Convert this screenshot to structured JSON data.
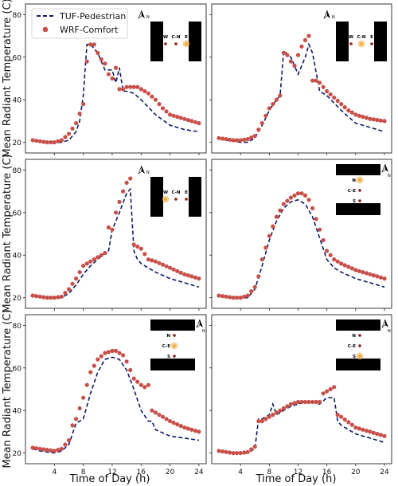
{
  "figure": {
    "ylabel": "Mean Radiant Temperature (C)",
    "xlabel": "Time of Day (h)"
  },
  "legend": {
    "items": [
      {
        "label": "TUF-Pedestrian",
        "style": "dashed-line",
        "color": "#0d1a66"
      },
      {
        "label": "WRF-Comfort",
        "style": "dot",
        "color": "#c8504a"
      }
    ]
  },
  "colors": {
    "tuf": "#0d1a66",
    "wrf": "#c8504a",
    "building": "#000000",
    "receptor_dark": "#8b1a1a",
    "receptor_highlight": "#f0a838"
  },
  "north_label": "N",
  "chart_data": [
    {
      "type": "line",
      "xlim": [
        0,
        25
      ],
      "ylim": [
        15,
        85
      ],
      "xticks": [
        4,
        8,
        12,
        16,
        20,
        24
      ],
      "yticks": [
        20,
        40,
        60,
        80
      ],
      "orientation": "E-W canyon",
      "points": [
        "W",
        "C-N",
        "E"
      ],
      "highlight": "E",
      "series": [
        {
          "name": "TUF-Pedestrian",
          "x": [
            1,
            2,
            3,
            4,
            5,
            6,
            7,
            7.5,
            8,
            8.5,
            9,
            10,
            11,
            12,
            12.5,
            13,
            13.5,
            14,
            15,
            16,
            18,
            20,
            22,
            24
          ],
          "y": [
            21,
            20.5,
            20,
            19.8,
            20,
            21,
            25,
            30,
            42,
            66,
            66,
            62,
            54,
            54,
            48,
            55,
            44,
            44,
            43,
            40,
            33,
            28,
            26,
            25
          ]
        },
        {
          "name": "WRF-Comfort",
          "x": [
            1,
            2,
            3,
            4,
            5,
            6,
            7,
            8,
            8.5,
            9,
            9.5,
            10,
            10.5,
            11,
            11.5,
            12,
            12.5,
            13,
            13.5,
            14,
            14.5,
            15,
            15.5,
            16,
            17,
            18,
            19,
            20,
            22,
            24
          ],
          "y": [
            21,
            20.5,
            20,
            20,
            21,
            24,
            29,
            38,
            58,
            66,
            66,
            62,
            59,
            57,
            52,
            50,
            55,
            45,
            45,
            46,
            46,
            46,
            46,
            45,
            43,
            40,
            36,
            33,
            31,
            29
          ]
        }
      ]
    },
    {
      "type": "line",
      "xlim": [
        0,
        25
      ],
      "ylim": [
        15,
        85
      ],
      "xticks": [
        4,
        8,
        12,
        16,
        20,
        24
      ],
      "yticks": [
        20,
        40,
        60,
        80
      ],
      "orientation": "E-W canyon",
      "points": [
        "W",
        "C-N",
        "E"
      ],
      "highlight": "C-N",
      "series": [
        {
          "name": "TUF-Pedestrian",
          "x": [
            1,
            2,
            3,
            4,
            5,
            6,
            7,
            8,
            9,
            9.5,
            10,
            11,
            12,
            12.5,
            13,
            13.5,
            14,
            15,
            16,
            18,
            20,
            22,
            24
          ],
          "y": [
            22,
            21,
            20.5,
            20,
            20,
            22,
            28,
            35,
            40,
            42,
            63,
            60,
            52,
            56,
            60,
            66,
            62,
            44,
            42,
            35,
            29,
            27,
            25
          ]
        },
        {
          "name": "WRF-Comfort",
          "x": [
            1,
            2,
            3,
            4,
            5,
            6,
            7,
            8,
            9,
            9.5,
            10,
            10.5,
            11,
            11.5,
            12,
            12.5,
            13,
            13.5,
            14,
            14.5,
            15,
            16,
            17,
            18,
            19,
            20,
            22,
            24
          ],
          "y": [
            22,
            21.5,
            21,
            21,
            21.5,
            23,
            29,
            36,
            40,
            42,
            62,
            61,
            58,
            56,
            61,
            65,
            68,
            70,
            49,
            49,
            48,
            44,
            41,
            38,
            35,
            33,
            31,
            30
          ]
        }
      ]
    },
    {
      "type": "line",
      "xlim": [
        0,
        25
      ],
      "ylim": [
        15,
        85
      ],
      "xticks": [
        4,
        8,
        12,
        16,
        20,
        24
      ],
      "yticks": [
        20,
        40,
        60,
        80
      ],
      "orientation": "E-W canyon",
      "points": [
        "W",
        "C-N",
        "E"
      ],
      "highlight": "W",
      "series": [
        {
          "name": "TUF-Pedestrian",
          "x": [
            1,
            2,
            3,
            4,
            5,
            6,
            7,
            8,
            9,
            10,
            11,
            11.5,
            12,
            13,
            14,
            14.5,
            15,
            15.5,
            16,
            18,
            20,
            22,
            24
          ],
          "y": [
            21,
            20.5,
            20,
            19.8,
            20,
            22,
            26,
            31,
            35,
            38,
            41,
            42,
            52,
            60,
            69,
            71,
            42,
            38,
            36,
            32,
            29,
            27,
            25
          ]
        },
        {
          "name": "WRF-Comfort",
          "x": [
            1,
            2,
            3,
            4,
            5,
            6,
            7,
            8,
            9,
            10,
            11,
            11.5,
            12,
            12.5,
            13,
            13.5,
            14,
            14.5,
            15,
            16,
            17,
            18,
            20,
            22,
            24
          ],
          "y": [
            21,
            20.5,
            20,
            20,
            20.5,
            24,
            29,
            35,
            37,
            39,
            41,
            53,
            52,
            60,
            65,
            70,
            74,
            76,
            45,
            43,
            38,
            37,
            34,
            31,
            29
          ]
        }
      ]
    },
    {
      "type": "line",
      "xlim": [
        0,
        25
      ],
      "ylim": [
        15,
        85
      ],
      "xticks": [
        4,
        8,
        12,
        16,
        20,
        24
      ],
      "yticks": [
        20,
        40,
        60,
        80
      ],
      "orientation": "N-S canyon",
      "points": [
        "N",
        "C-E",
        "S"
      ],
      "highlight": "N",
      "series": [
        {
          "name": "TUF-Pedestrian",
          "x": [
            1,
            2,
            3,
            4,
            5,
            6,
            7,
            8,
            9,
            10,
            11,
            12,
            13,
            14,
            15,
            16,
            17,
            18,
            20,
            22,
            24
          ],
          "y": [
            21,
            20.5,
            20,
            19.8,
            20,
            24,
            35,
            47,
            56,
            62,
            65,
            66,
            64,
            58,
            48,
            38,
            34,
            32,
            29,
            27,
            25
          ]
        },
        {
          "name": "WRF-Comfort",
          "x": [
            1,
            2,
            3,
            4,
            5,
            6,
            6.5,
            7,
            8,
            9,
            10,
            11,
            12,
            12.5,
            13,
            13.5,
            14,
            15,
            16,
            17,
            18,
            20,
            22,
            24
          ],
          "y": [
            21,
            20.5,
            20,
            20,
            21,
            25,
            30,
            38,
            49,
            58,
            64,
            67,
            69,
            69,
            68,
            66,
            62,
            52,
            42,
            38,
            36,
            33,
            31,
            29
          ]
        }
      ]
    },
    {
      "type": "line",
      "xlim": [
        0,
        25
      ],
      "ylim": [
        15,
        85
      ],
      "xticks": [
        4,
        8,
        12,
        16,
        20,
        24
      ],
      "yticks": [
        20,
        40,
        60,
        80
      ],
      "orientation": "N-S canyon",
      "points": [
        "N",
        "C-E",
        "S"
      ],
      "highlight": "C-E",
      "series": [
        {
          "name": "TUF-Pedestrian",
          "x": [
            1,
            2,
            3,
            4,
            5,
            6,
            7,
            7.5,
            8,
            9,
            10,
            11,
            12,
            13,
            14,
            15,
            16,
            17,
            17.5,
            18,
            20,
            22,
            24
          ],
          "y": [
            22,
            21,
            20.5,
            20,
            21,
            24,
            34,
            35,
            36,
            48,
            58,
            64,
            65,
            64,
            59,
            50,
            40,
            35,
            35,
            31,
            28,
            27,
            26
          ]
        },
        {
          "name": "WRF-Comfort",
          "x": [
            1,
            2,
            3,
            4,
            5,
            6,
            6.5,
            7,
            8,
            9,
            10,
            11,
            12,
            12.5,
            13,
            13.5,
            14,
            15,
            16,
            16.5,
            17,
            17.5,
            18,
            19,
            20,
            22,
            24
          ],
          "y": [
            22.5,
            22,
            21.5,
            21,
            22,
            26,
            33,
            36,
            46,
            58,
            64,
            67,
            68,
            68,
            67,
            66,
            63,
            55,
            52,
            51,
            52,
            40,
            39,
            37,
            35,
            32,
            30
          ]
        }
      ]
    },
    {
      "type": "line",
      "xlim": [
        0,
        25
      ],
      "ylim": [
        15,
        85
      ],
      "xticks": [
        4,
        8,
        12,
        16,
        20,
        24
      ],
      "yticks": [
        20,
        40,
        60,
        80
      ],
      "orientation": "N-S canyon",
      "points": [
        "N",
        "C-E",
        "S"
      ],
      "highlight": "S",
      "series": [
        {
          "name": "TUF-Pedestrian",
          "x": [
            1,
            2,
            3,
            4,
            5,
            6,
            6.5,
            7,
            7.5,
            8,
            8.5,
            9,
            10,
            11,
            12,
            13,
            14,
            15,
            16,
            17,
            17.5,
            18,
            20,
            22,
            24
          ],
          "y": [
            21,
            20.5,
            20,
            19.8,
            20,
            22,
            36,
            36,
            37,
            38,
            43,
            38,
            40,
            42,
            43,
            44,
            44,
            43,
            46,
            46,
            35,
            33,
            29,
            27,
            25
          ]
        },
        {
          "name": "WRF-Comfort",
          "x": [
            1,
            2,
            3,
            4,
            5,
            6,
            6.5,
            7,
            8,
            9,
            10,
            11,
            12,
            13,
            14,
            15,
            15.5,
            16,
            16.5,
            17,
            17.5,
            18,
            20,
            22,
            24
          ],
          "y": [
            21,
            20.5,
            20,
            20,
            20.5,
            23,
            35,
            35,
            37,
            39,
            41,
            43,
            44,
            44,
            44,
            44,
            48,
            49,
            50,
            51,
            38,
            37,
            32,
            30,
            28
          ]
        }
      ]
    }
  ]
}
